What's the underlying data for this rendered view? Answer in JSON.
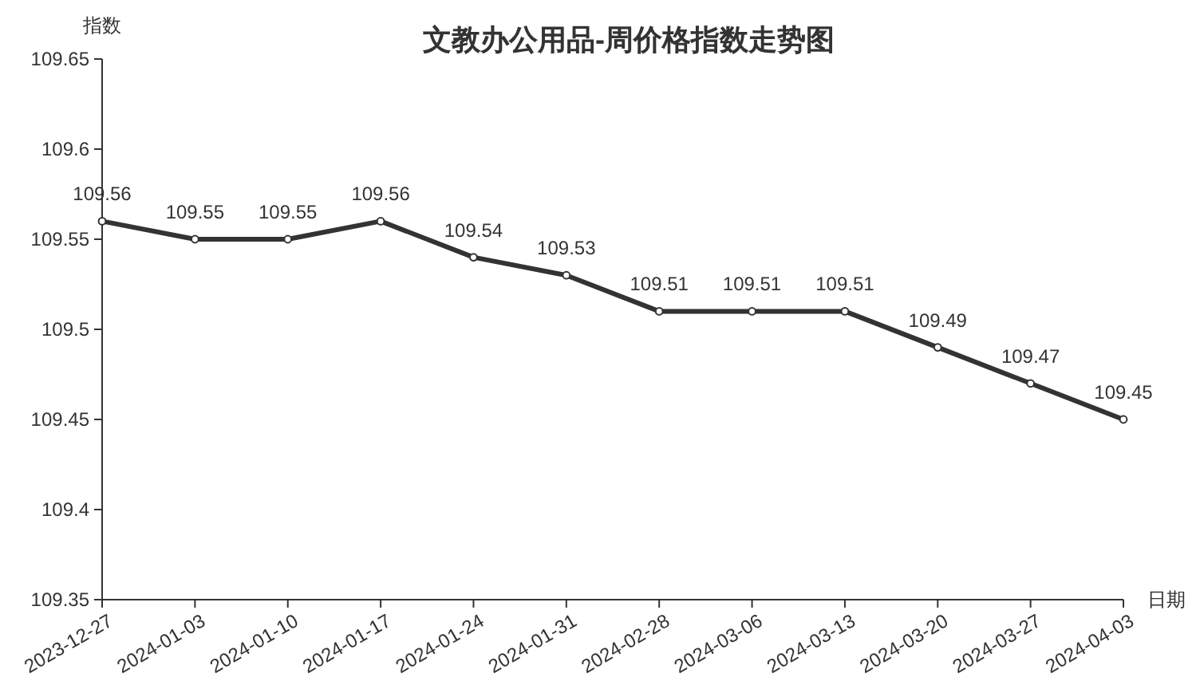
{
  "chart_data": {
    "type": "line",
    "title": "文教办公用品-周价格指数走势图",
    "xlabel": "日期",
    "ylabel": "指数",
    "categories": [
      "2023-12-27",
      "2024-01-03",
      "2024-01-10",
      "2024-01-17",
      "2024-01-24",
      "2024-01-31",
      "2024-02-28",
      "2024-03-06",
      "2024-03-13",
      "2024-03-20",
      "2024-03-27",
      "2024-04-03"
    ],
    "series": [
      {
        "color": "#333333",
        "values": [
          109.56,
          109.55,
          109.55,
          109.56,
          109.54,
          109.53,
          109.51,
          109.51,
          109.51,
          109.49,
          109.47,
          109.45
        ]
      }
    ],
    "ylim": [
      109.35,
      109.65
    ],
    "yticks": [
      109.35,
      109.4,
      109.45,
      109.5,
      109.55,
      109.6,
      109.65
    ],
    "grid": false,
    "marker": "circle",
    "line_style": "solid",
    "data_labels": true
  }
}
